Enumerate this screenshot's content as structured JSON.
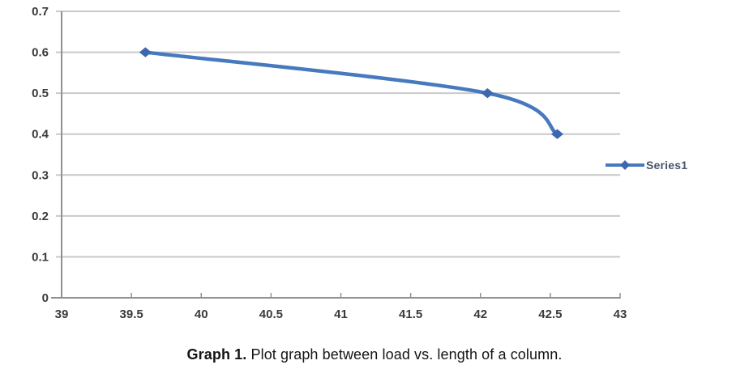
{
  "chart_data": {
    "type": "line",
    "title": "",
    "xlabel": "",
    "ylabel": "",
    "xlim": [
      39,
      43
    ],
    "ylim": [
      0,
      0.7
    ],
    "x_ticks": [
      39,
      39.5,
      40,
      40.5,
      41,
      41.5,
      42,
      42.5,
      43
    ],
    "y_ticks": [
      0,
      0.1,
      0.2,
      0.3,
      0.4,
      0.5,
      0.6,
      0.7
    ],
    "grid": "horizontal",
    "smooth": true,
    "legend_position": "right",
    "series": [
      {
        "name": "Series1",
        "marker": "diamond",
        "points": [
          [
            39.6,
            0.6
          ],
          [
            42.05,
            0.5
          ],
          [
            42.55,
            0.4
          ]
        ]
      }
    ]
  },
  "legend": {
    "label": "Series1"
  },
  "caption": {
    "prefix": "Graph 1.",
    "text": "Plot graph between load vs. length of a column."
  },
  "colors": {
    "line": "#4779be",
    "marker": "#3d68ae",
    "gridline": "#c9c9c9",
    "axis": "#919191",
    "tick_label": "#3a3a3a",
    "legend_text": "#47546a"
  }
}
